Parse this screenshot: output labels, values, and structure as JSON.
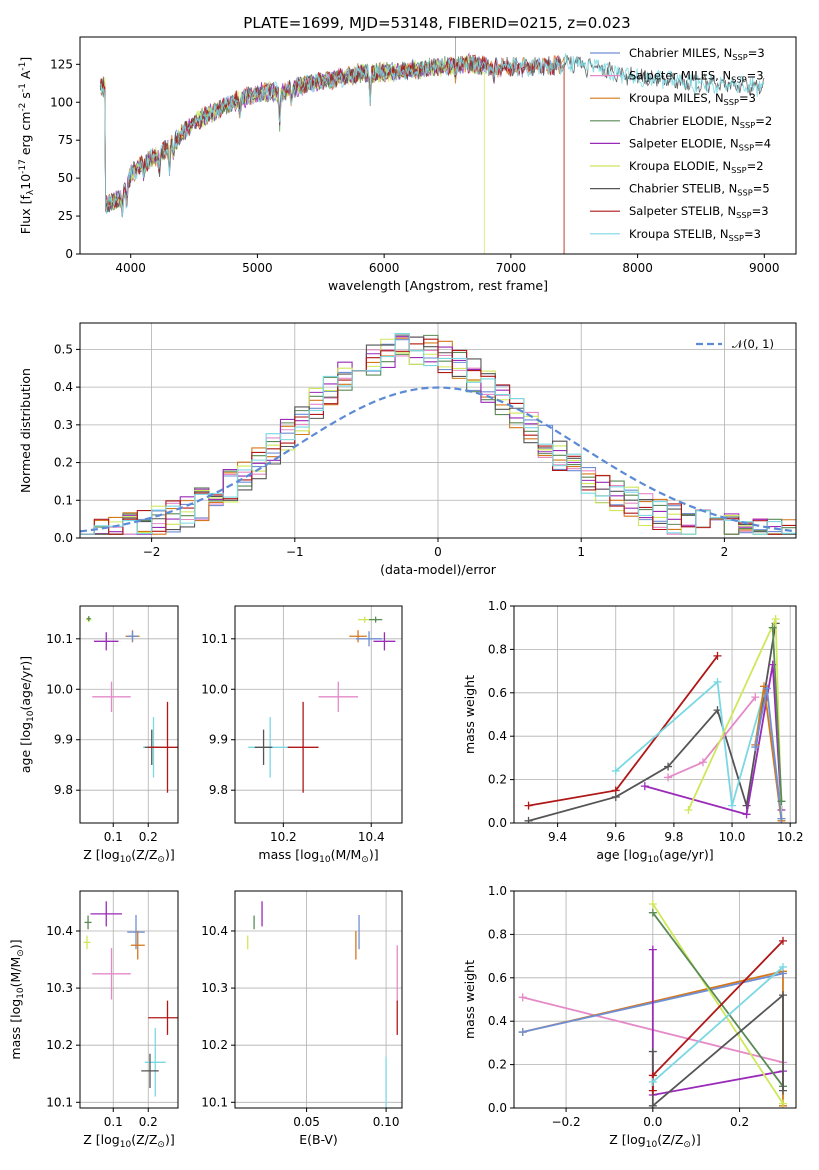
{
  "figure": {
    "title": "PLATE=1699, MJD=53148, FIBERID=0215, z=0.023"
  },
  "colors": {
    "Chabrier MILES": "#6f8fd4",
    "Salpeter MILES": "#e58ac7",
    "Kroupa MILES": "#d4781d",
    "Chabrier ELODIE": "#5a8a56",
    "Salpeter ELODIE": "#9a2ab8",
    "Kroupa ELODIE": "#cfe85a",
    "Chabrier STELIB": "#555555",
    "Salpeter STELIB": "#b01818",
    "Kroupa STELIB": "#7ad8e3",
    "normal_curve": "#5b8ad6"
  },
  "chart_data": [
    {
      "id": "spectrum",
      "type": "line",
      "xlabel": "wavelength [Angstrom, rest frame]",
      "ylabel": "Flux [f$_\\lambda$10$^{-17}$ erg cm$^{-2}$ s$^{-1}$ A$^{-1}$]",
      "xlim": [
        3600,
        9250
      ],
      "ylim": [
        0,
        143
      ],
      "xticks": [
        4000,
        5000,
        6000,
        7000,
        8000,
        9000
      ],
      "yticks": [
        0,
        25,
        50,
        75,
        100,
        125
      ],
      "grid": false,
      "legend": [
        {
          "name": "Chabrier MILES",
          "nssp": "3"
        },
        {
          "name": "Salpeter MILES",
          "nssp": "3"
        },
        {
          "name": "Kroupa MILES",
          "nssp": "3"
        },
        {
          "name": "Chabrier ELODIE",
          "nssp": "2"
        },
        {
          "name": "Salpeter ELODIE",
          "nssp": "4"
        },
        {
          "name": "Kroupa ELODIE",
          "nssp": "2"
        },
        {
          "name": "Chabrier STELIB",
          "nssp": "5"
        },
        {
          "name": "Salpeter STELIB",
          "nssp": "3"
        },
        {
          "name": "Kroupa STELIB",
          "nssp": "3"
        }
      ],
      "continuum": [
        [
          3800,
          32
        ],
        [
          3900,
          36
        ],
        [
          3950,
          40
        ],
        [
          4000,
          52
        ],
        [
          4100,
          60
        ],
        [
          4200,
          64
        ],
        [
          4300,
          70
        ],
        [
          4400,
          79
        ],
        [
          4500,
          87
        ],
        [
          4600,
          91
        ],
        [
          4700,
          96
        ],
        [
          4800,
          100
        ],
        [
          4900,
          103
        ],
        [
          5000,
          106
        ],
        [
          5100,
          107
        ],
        [
          5200,
          106
        ],
        [
          5300,
          110
        ],
        [
          5400,
          112
        ],
        [
          5500,
          114
        ],
        [
          5600,
          115
        ],
        [
          5700,
          117
        ],
        [
          5800,
          119
        ],
        [
          5900,
          119
        ],
        [
          6000,
          120
        ],
        [
          6100,
          120
        ],
        [
          6200,
          121
        ],
        [
          6300,
          122
        ],
        [
          6400,
          123
        ],
        [
          6500,
          124
        ],
        [
          6600,
          125
        ],
        [
          6700,
          125
        ],
        [
          6800,
          124
        ],
        [
          6900,
          123
        ],
        [
          7000,
          123
        ],
        [
          7100,
          123
        ],
        [
          7200,
          124
        ],
        [
          7300,
          124
        ],
        [
          7400,
          125
        ],
        [
          7500,
          126
        ],
        [
          7600,
          125
        ],
        [
          7700,
          122
        ],
        [
          7800,
          120
        ],
        [
          7900,
          117
        ],
        [
          8000,
          116
        ],
        [
          8200,
          115
        ],
        [
          8400,
          113
        ],
        [
          8600,
          112
        ],
        [
          8800,
          111
        ],
        [
          9000,
          110
        ]
      ],
      "absorption_lines": [
        [
          3934,
          -12
        ],
        [
          3968,
          -10
        ],
        [
          4101,
          -8
        ],
        [
          4226,
          -10
        ],
        [
          4305,
          -14
        ],
        [
          4340,
          -8
        ],
        [
          4861,
          -8
        ],
        [
          5175,
          -20
        ],
        [
          5270,
          -8
        ],
        [
          5890,
          -18
        ],
        [
          6563,
          -6
        ],
        [
          6867,
          -10
        ],
        [
          7600,
          -8
        ]
      ],
      "cutoffs": [
        {
          "series": "Kroupa ELODIE",
          "at": 6790
        },
        {
          "series": "Kroupa MILES",
          "at": 7420
        },
        {
          "series": "Salpeter STELIB",
          "at": 7420
        }
      ],
      "end_wavelength": {
        "Chabrier MILES": 7400,
        "Salpeter MILES": 7400,
        "Kroupa MILES": 7420,
        "Chabrier ELODIE": 6790,
        "Salpeter ELODIE": 6790,
        "Kroupa ELODIE": 6790,
        "Chabrier STELIB": 9000,
        "Salpeter STELIB": 7420,
        "Kroupa STELIB": 9000
      }
    },
    {
      "id": "residuals",
      "type": "histogram",
      "xlabel": "(data-model)/error",
      "ylabel": "Normed distribution",
      "xlim": [
        -2.5,
        2.5
      ],
      "ylim": [
        0,
        0.57
      ],
      "xticks": [
        -2,
        -1,
        0,
        1,
        2
      ],
      "yticks": [
        0.0,
        0.1,
        0.2,
        0.3,
        0.4,
        0.5
      ],
      "grid": true,
      "legend_label": "𝒩(0, 1)",
      "legend_location": "upper right",
      "bin_width": 0.1,
      "reference_curve": "normal(0,1)",
      "profile_mean": -0.2,
      "profile_sigma": 0.78,
      "profile_amplitude": 0.5,
      "series_order": [
        "Chabrier MILES",
        "Salpeter MILES",
        "Kroupa MILES",
        "Chabrier ELODIE",
        "Salpeter ELODIE",
        "Kroupa ELODIE",
        "Chabrier STELIB",
        "Salpeter STELIB",
        "Kroupa STELIB"
      ]
    },
    {
      "id": "age_vs_Z",
      "type": "errorbar",
      "xlabel": "Z [log$_{10}$(Z/Z$_\\odot$)]",
      "ylabel": "age  [log$_{10}$(age/yr)]",
      "xlim": [
        0.005,
        0.285
      ],
      "ylim": [
        9.735,
        10.165
      ],
      "xticks": [
        0.1,
        0.2
      ],
      "yticks": [
        9.8,
        9.9,
        10.0,
        10.1
      ],
      "grid": true,
      "points": [
        {
          "series": "Salpeter ELODIE",
          "x": 0.08,
          "y": 10.095,
          "xerr": 0.035,
          "yerr": 0.018
        },
        {
          "series": "Kroupa ELODIE",
          "x": 0.03,
          "y": 10.138,
          "xerr": 0.008,
          "yerr": 0.005
        },
        {
          "series": "Chabrier ELODIE",
          "x": 0.03,
          "y": 10.14,
          "xerr": 0.006,
          "yerr": 0.005
        },
        {
          "series": "Kroupa MILES",
          "x": 0.155,
          "y": 10.105,
          "xerr": 0.02,
          "yerr": 0.012
        },
        {
          "series": "Chabrier MILES",
          "x": 0.155,
          "y": 10.105,
          "xerr": 0.015,
          "yerr": 0.01
        },
        {
          "series": "Salpeter MILES",
          "x": 0.095,
          "y": 9.985,
          "xerr": 0.055,
          "yerr": 0.03
        },
        {
          "series": "Kroupa STELIB",
          "x": 0.215,
          "y": 9.885,
          "xerr": 0.03,
          "yerr": 0.06
        },
        {
          "series": "Chabrier STELIB",
          "x": 0.21,
          "y": 9.885,
          "xerr": 0.02,
          "yerr": 0.035
        },
        {
          "series": "Salpeter STELIB",
          "x": 0.255,
          "y": 9.885,
          "xerr": 0.055,
          "yerr": 0.09
        }
      ]
    },
    {
      "id": "age_vs_mass",
      "type": "errorbar",
      "xlabel": "mass [log$_{10}$(M/M$_\\odot$)]",
      "ylabel": "",
      "xlim": [
        10.09,
        10.47
      ],
      "ylim": [
        9.735,
        10.165
      ],
      "xticks": [
        10.2,
        10.4
      ],
      "yticks": [
        9.8,
        9.9,
        10.0,
        10.1
      ],
      "grid": true,
      "points": [
        {
          "series": "Salpeter ELODIE",
          "x": 10.43,
          "y": 10.095,
          "xerr": 0.025,
          "yerr": 0.018
        },
        {
          "series": "Kroupa ELODIE",
          "x": 10.385,
          "y": 10.138,
          "xerr": 0.015,
          "yerr": 0.006
        },
        {
          "series": "Chabrier ELODIE",
          "x": 10.41,
          "y": 10.138,
          "xerr": 0.015,
          "yerr": 0.006
        },
        {
          "series": "Kroupa MILES",
          "x": 10.37,
          "y": 10.105,
          "xerr": 0.02,
          "yerr": 0.012
        },
        {
          "series": "Chabrier MILES",
          "x": 10.395,
          "y": 10.1,
          "xerr": 0.03,
          "yerr": 0.015
        },
        {
          "series": "Salpeter MILES",
          "x": 10.325,
          "y": 9.985,
          "xerr": 0.045,
          "yerr": 0.03
        },
        {
          "series": "Kroupa STELIB",
          "x": 10.17,
          "y": 9.885,
          "xerr": 0.05,
          "yerr": 0.06
        },
        {
          "series": "Chabrier STELIB",
          "x": 10.155,
          "y": 9.885,
          "xerr": 0.02,
          "yerr": 0.035
        },
        {
          "series": "Salpeter STELIB",
          "x": 10.245,
          "y": 9.885,
          "xerr": 0.035,
          "yerr": 0.09
        }
      ]
    },
    {
      "id": "weights_vs_age",
      "type": "line",
      "xlabel": "age  [log$_{10}$(age/yr)]",
      "ylabel": "mass weight",
      "xlim": [
        9.25,
        10.22
      ],
      "ylim": [
        0,
        1.0
      ],
      "xticks": [
        9.4,
        9.6,
        9.8,
        10.0,
        10.2
      ],
      "yticks": [
        0.0,
        0.2,
        0.4,
        0.6,
        0.8,
        1.0
      ],
      "grid": true,
      "series": [
        {
          "name": "Salpeter STELIB",
          "points": [
            [
              9.3,
              0.08
            ],
            [
              9.6,
              0.15
            ],
            [
              9.95,
              0.77
            ]
          ]
        },
        {
          "name": "Chabrier STELIB",
          "points": [
            [
              9.3,
              0.01
            ],
            [
              9.6,
              0.12
            ],
            [
              9.78,
              0.26
            ],
            [
              9.95,
              0.52
            ],
            [
              10.05,
              0.08
            ],
            [
              10.15,
              0.92
            ]
          ]
        },
        {
          "name": "Kroupa STELIB",
          "points": [
            [
              9.6,
              0.24
            ],
            [
              9.95,
              0.65
            ],
            [
              10.0,
              0.08
            ],
            [
              10.11,
              0.6
            ]
          ]
        },
        {
          "name": "Salpeter MILES",
          "points": [
            [
              9.78,
              0.21
            ],
            [
              9.9,
              0.28
            ],
            [
              10.08,
              0.58
            ]
          ]
        },
        {
          "name": "Salpeter ELODIE",
          "points": [
            [
              9.7,
              0.17
            ],
            [
              10.05,
              0.04
            ],
            [
              10.14,
              0.73
            ],
            [
              10.17,
              0.06
            ]
          ]
        },
        {
          "name": "Kroupa ELODIE",
          "points": [
            [
              9.85,
              0.06
            ],
            [
              10.15,
              0.94
            ],
            [
              10.17,
              0.02
            ]
          ]
        },
        {
          "name": "Kroupa MILES",
          "points": [
            [
              10.08,
              0.36
            ],
            [
              10.11,
              0.63
            ],
            [
              10.17,
              0.01
            ]
          ]
        },
        {
          "name": "Chabrier MILES",
          "points": [
            [
              10.08,
              0.35
            ],
            [
              10.12,
              0.62
            ],
            [
              10.17,
              0.02
            ]
          ]
        },
        {
          "name": "Chabrier ELODIE",
          "points": [
            [
              10.14,
              0.9
            ],
            [
              10.17,
              0.1
            ]
          ]
        }
      ]
    },
    {
      "id": "mass_vs_Z",
      "type": "errorbar",
      "xlabel": "Z [log$_{10}$(Z/Z$_\\odot$)]",
      "ylabel": "mass [log$_{10}$(M/M$_\\odot$)]",
      "xlim": [
        0.005,
        0.285
      ],
      "ylim": [
        10.09,
        10.47
      ],
      "xticks": [
        0.1,
        0.2
      ],
      "yticks": [
        10.1,
        10.2,
        10.3,
        10.4
      ],
      "grid": true,
      "points": [
        {
          "series": "Salpeter ELODIE",
          "x": 0.08,
          "y": 10.43,
          "xerr": 0.045,
          "yerr": 0.022
        },
        {
          "series": "Kroupa ELODIE",
          "x": 0.025,
          "y": 10.38,
          "xerr": 0.01,
          "yerr": 0.012
        },
        {
          "series": "Chabrier ELODIE",
          "x": 0.028,
          "y": 10.415,
          "xerr": 0.01,
          "yerr": 0.012
        },
        {
          "series": "Chabrier MILES",
          "x": 0.165,
          "y": 10.398,
          "xerr": 0.025,
          "yerr": 0.03
        },
        {
          "series": "Kroupa MILES",
          "x": 0.17,
          "y": 10.375,
          "xerr": 0.02,
          "yerr": 0.025
        },
        {
          "series": "Salpeter MILES",
          "x": 0.095,
          "y": 10.325,
          "xerr": 0.055,
          "yerr": 0.045
        },
        {
          "series": "Salpeter STELIB",
          "x": 0.255,
          "y": 10.248,
          "xerr": 0.055,
          "yerr": 0.03
        },
        {
          "series": "Kroupa STELIB",
          "x": 0.22,
          "y": 10.17,
          "xerr": 0.03,
          "yerr": 0.06
        },
        {
          "series": "Chabrier STELIB",
          "x": 0.205,
          "y": 10.155,
          "xerr": 0.025,
          "yerr": 0.03
        }
      ]
    },
    {
      "id": "mass_vs_ebv",
      "type": "errorbar",
      "xlabel": "E(B-V)",
      "ylabel": "",
      "xlim": [
        0.005,
        0.11
      ],
      "ylim": [
        10.09,
        10.47
      ],
      "xticks": [
        0.05,
        0.1
      ],
      "yticks": [
        10.1,
        10.2,
        10.3,
        10.4
      ],
      "grid": true,
      "points": [
        {
          "series": "Salpeter ELODIE",
          "x": 0.022,
          "y": 10.43,
          "yerr": 0.022
        },
        {
          "series": "Chabrier ELODIE",
          "x": 0.017,
          "y": 10.415,
          "yerr": 0.012
        },
        {
          "series": "Kroupa ELODIE",
          "x": 0.013,
          "y": 10.38,
          "yerr": 0.012
        },
        {
          "series": "Chabrier MILES",
          "x": 0.083,
          "y": 10.398,
          "yerr": 0.03
        },
        {
          "series": "Kroupa MILES",
          "x": 0.081,
          "y": 10.375,
          "yerr": 0.025
        },
        {
          "series": "Salpeter MILES",
          "x": 0.107,
          "y": 10.325,
          "yerr": 0.05
        },
        {
          "series": "Salpeter STELIB",
          "x": 0.107,
          "y": 10.248,
          "yerr": 0.03
        },
        {
          "series": "Kroupa STELIB",
          "x": 0.1,
          "y": 10.135,
          "yerr": 0.045
        }
      ]
    },
    {
      "id": "weights_vs_Z",
      "type": "line",
      "xlabel": "Z [log$_{10}$(Z/Z$_\\odot$)]",
      "ylabel": "mass weight",
      "xlim": [
        -0.32,
        0.33
      ],
      "ylim": [
        0,
        1.0
      ],
      "xticks": [
        -0.2,
        0.0,
        0.2
      ],
      "yticks": [
        0.0,
        0.2,
        0.4,
        0.6,
        0.8,
        1.0
      ],
      "grid": true,
      "series": [
        {
          "name": "Salpeter MILES",
          "points": [
            [
              -0.3,
              0.51
            ],
            [
              0.3,
              0.21
            ]
          ]
        },
        {
          "name": "Kroupa MILES",
          "points": [
            [
              -0.3,
              0.35
            ],
            [
              0.3,
              0.63
            ],
            [
              0.3,
              0.01
            ]
          ]
        },
        {
          "name": "Chabrier MILES",
          "points": [
            [
              -0.3,
              0.35
            ],
            [
              0.3,
              0.62
            ]
          ]
        },
        {
          "name": "Salpeter ELODIE",
          "points": [
            [
              0.0,
              0.73
            ],
            [
              0.0,
              0.06
            ],
            [
              0.3,
              0.17
            ]
          ]
        },
        {
          "name": "Kroupa ELODIE",
          "points": [
            [
              0.0,
              0.94
            ],
            [
              0.3,
              0.02
            ]
          ]
        },
        {
          "name": "Chabrier ELODIE",
          "points": [
            [
              0.0,
              0.9
            ],
            [
              0.3,
              0.1
            ]
          ]
        },
        {
          "name": "Chabrier STELIB",
          "points": [
            [
              0.0,
              0.26
            ],
            [
              0.0,
              0.01
            ],
            [
              0.3,
              0.52
            ],
            [
              0.3,
              0.08
            ]
          ]
        },
        {
          "name": "Salpeter STELIB",
          "points": [
            [
              0.0,
              0.08
            ],
            [
              0.0,
              0.15
            ],
            [
              0.3,
              0.77
            ]
          ]
        },
        {
          "name": "Kroupa STELIB",
          "points": [
            [
              0.0,
              0.12
            ],
            [
              0.3,
              0.65
            ]
          ]
        }
      ]
    }
  ]
}
